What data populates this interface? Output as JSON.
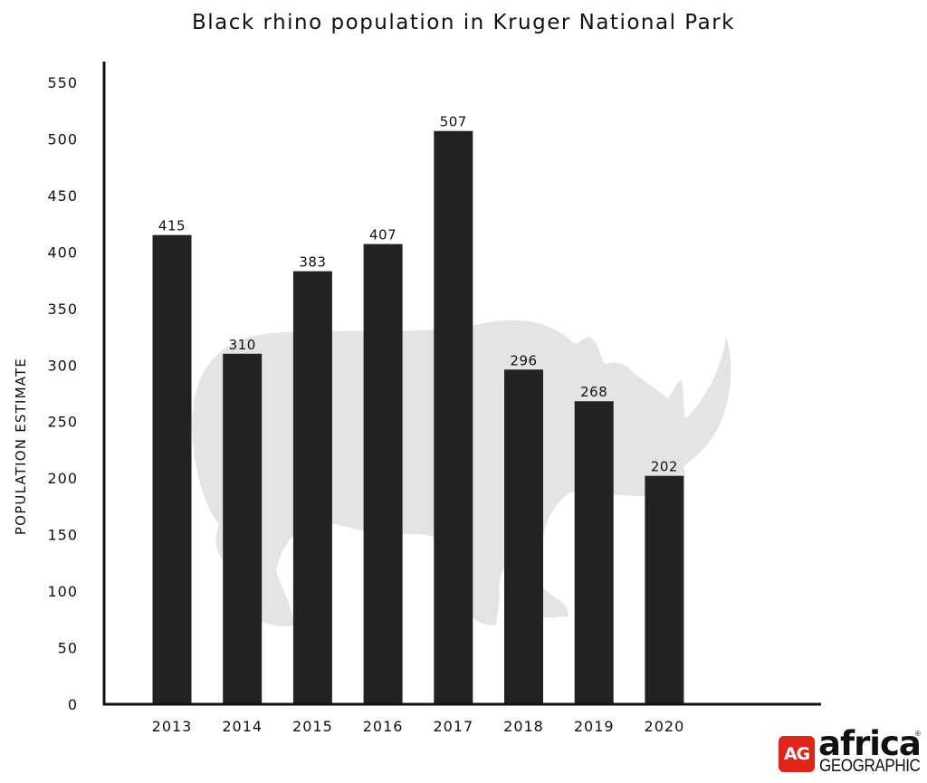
{
  "chart_data": {
    "type": "bar",
    "title": "Black rhino population in Kruger National Park",
    "xlabel": "",
    "ylabel": "POPULATION ESTIMATE",
    "categories": [
      "2013",
      "2014",
      "2015",
      "2016",
      "2017",
      "2018",
      "2019",
      "2020"
    ],
    "values": [
      415,
      310,
      383,
      407,
      507,
      296,
      268,
      202
    ],
    "data_labels": [
      "415",
      "310",
      "383",
      "407",
      "507",
      "296",
      "268",
      "202"
    ],
    "yticks": [
      "0",
      "50",
      "100",
      "150",
      "200",
      "250",
      "300",
      "350",
      "400",
      "450",
      "500",
      "550"
    ],
    "ylim": [
      0,
      550
    ],
    "bar_color": "#222222",
    "grid": false,
    "legend": "none",
    "background_graphic": "rhino-silhouette"
  },
  "logo": {
    "badge": "AG",
    "word": "africa",
    "sub": "GEOGRAPHIC",
    "mark": "®",
    "brand_color": "#e1251b"
  }
}
